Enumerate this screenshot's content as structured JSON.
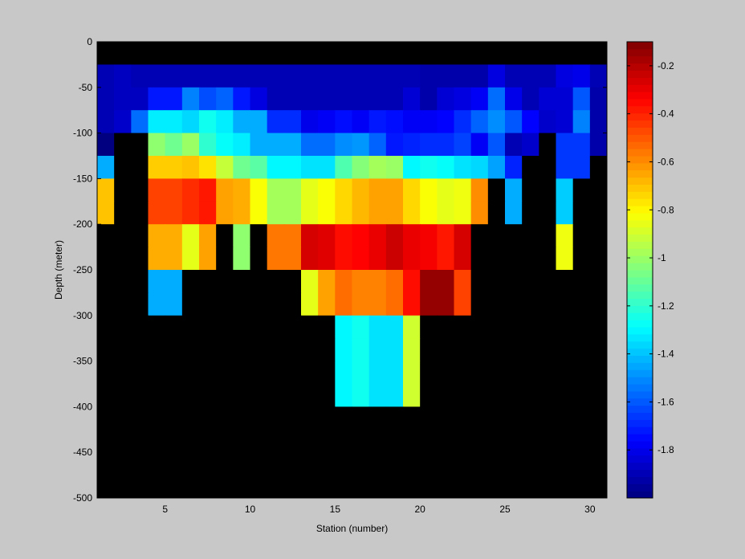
{
  "chart_data": {
    "type": "heatmap",
    "title": "",
    "xlabel": "Station (number)",
    "ylabel": "Depth (meter)",
    "xlim": [
      1,
      31
    ],
    "ylim": [
      -500,
      0
    ],
    "x_ticks": [
      5,
      10,
      15,
      20,
      25,
      30
    ],
    "y_ticks": [
      0,
      -50,
      -100,
      -150,
      -200,
      -250,
      -300,
      -350,
      -400,
      -450,
      -500
    ],
    "grid": false,
    "stations": [
      1,
      2,
      3,
      4,
      5,
      6,
      7,
      8,
      9,
      10,
      11,
      12,
      13,
      14,
      15,
      16,
      17,
      18,
      19,
      20,
      21,
      22,
      23,
      24,
      25,
      26,
      27,
      28,
      29,
      30
    ],
    "depths": [
      0,
      -25,
      -50,
      -75,
      -100,
      -125,
      -150,
      -175,
      -200,
      -225,
      -250,
      -275,
      -300,
      -325,
      -350,
      -375,
      -400,
      -425,
      -450,
      -475
    ],
    "no_data_color": "#000000",
    "colorbar": {
      "colormap": "jet",
      "range": [
        -2.0,
        -0.1
      ],
      "ticks": [
        -0.2,
        -0.4,
        -0.6,
        -0.8,
        -1,
        -1.2,
        -1.4,
        -1.6,
        -1.8
      ]
    },
    "values": [
      [
        null,
        null,
        null,
        null,
        null,
        null,
        null,
        null,
        null,
        null,
        null,
        null,
        null,
        null,
        null,
        null,
        null,
        null,
        null,
        null,
        null,
        null,
        null,
        null,
        null,
        null,
        null,
        null,
        null,
        null
      ],
      [
        -1.9,
        -1.88,
        -1.9,
        -1.9,
        -1.9,
        -1.9,
        -1.9,
        -1.9,
        -1.9,
        -1.9,
        -1.9,
        -1.9,
        -1.9,
        -1.9,
        -1.9,
        -1.9,
        -1.9,
        -1.9,
        -1.9,
        -1.92,
        -1.92,
        -1.92,
        -1.92,
        -1.82,
        -1.9,
        -1.9,
        -1.9,
        -1.82,
        -1.8,
        -1.9
      ],
      [
        -1.9,
        -1.88,
        -1.88,
        -1.72,
        -1.72,
        -1.52,
        -1.62,
        -1.58,
        -1.72,
        -1.82,
        -1.9,
        -1.9,
        -1.9,
        -1.9,
        -1.9,
        -1.9,
        -1.9,
        -1.9,
        -1.84,
        -1.92,
        -1.84,
        -1.82,
        -1.78,
        -1.56,
        -1.8,
        -1.9,
        -1.84,
        -1.84,
        -1.6,
        -1.92
      ],
      [
        -1.9,
        -1.86,
        -1.56,
        -1.32,
        -1.32,
        -1.36,
        -1.26,
        -1.32,
        -1.44,
        -1.44,
        -1.68,
        -1.68,
        -1.8,
        -1.78,
        -1.74,
        -1.78,
        -1.72,
        -1.74,
        -1.78,
        -1.78,
        -1.76,
        -1.68,
        -1.58,
        -1.5,
        -1.6,
        -1.76,
        -1.86,
        -1.84,
        -1.52,
        -1.92
      ],
      [
        -2.0,
        null,
        null,
        -1.02,
        -1.08,
        -1.0,
        -1.2,
        -1.28,
        -1.32,
        -1.44,
        -1.44,
        -1.44,
        -1.56,
        -1.56,
        -1.5,
        -1.48,
        -1.58,
        -1.72,
        -1.7,
        -1.68,
        -1.68,
        -1.64,
        -1.78,
        -1.6,
        -1.9,
        -1.86,
        null,
        -1.66,
        -1.66,
        -1.92
      ],
      [
        -1.44,
        null,
        null,
        -0.72,
        -0.72,
        -0.7,
        -0.76,
        -0.92,
        -1.08,
        -1.12,
        -1.3,
        -1.3,
        -1.34,
        -1.34,
        -1.14,
        -1.04,
        -0.98,
        -1.0,
        -1.3,
        -1.26,
        -1.28,
        -1.34,
        -1.36,
        -1.46,
        -1.7,
        null,
        null,
        -1.66,
        -1.66,
        null
      ],
      [
        -0.7,
        null,
        null,
        -0.46,
        -0.46,
        -0.42,
        -0.38,
        -0.64,
        -0.66,
        -0.82,
        -0.98,
        -0.98,
        -0.86,
        -0.82,
        -0.74,
        -0.68,
        -0.64,
        -0.64,
        -0.74,
        -0.82,
        -0.86,
        -0.84,
        -0.6,
        null,
        -1.44,
        null,
        null,
        -1.38,
        null,
        null
      ],
      [
        -0.7,
        null,
        null,
        -0.46,
        -0.46,
        -0.42,
        -0.38,
        -0.64,
        -0.66,
        -0.82,
        -0.98,
        -0.98,
        -0.86,
        -0.82,
        -0.74,
        -0.68,
        -0.64,
        -0.64,
        -0.74,
        -0.82,
        -0.86,
        -0.84,
        -0.6,
        null,
        -1.44,
        null,
        null,
        -1.38,
        null,
        null
      ],
      [
        null,
        null,
        null,
        -0.66,
        -0.66,
        -0.86,
        -0.64,
        null,
        -1.02,
        null,
        -0.56,
        -0.56,
        -0.26,
        -0.28,
        -0.36,
        -0.34,
        -0.3,
        -0.24,
        -0.3,
        -0.32,
        -0.38,
        -0.26,
        null,
        null,
        null,
        null,
        null,
        -0.84,
        null,
        null
      ],
      [
        null,
        null,
        null,
        -0.66,
        -0.66,
        -0.86,
        -0.64,
        null,
        -1.02,
        null,
        -0.56,
        -0.56,
        -0.26,
        -0.28,
        -0.36,
        -0.34,
        -0.3,
        -0.24,
        -0.3,
        -0.32,
        -0.38,
        -0.26,
        null,
        null,
        null,
        null,
        null,
        -0.84,
        null,
        null
      ],
      [
        null,
        null,
        null,
        -1.44,
        -1.44,
        null,
        null,
        null,
        null,
        null,
        null,
        null,
        -0.86,
        -0.64,
        -0.54,
        -0.58,
        -0.58,
        -0.54,
        -0.36,
        -0.14,
        -0.14,
        -0.46,
        null,
        null,
        null,
        null,
        null,
        null,
        null,
        null
      ],
      [
        null,
        null,
        null,
        -1.44,
        -1.44,
        null,
        null,
        null,
        null,
        null,
        null,
        null,
        -0.86,
        -0.64,
        -0.54,
        -0.58,
        -0.58,
        -0.54,
        -0.36,
        -0.14,
        -0.14,
        -0.46,
        null,
        null,
        null,
        null,
        null,
        null,
        null,
        null
      ],
      [
        null,
        null,
        null,
        null,
        null,
        null,
        null,
        null,
        null,
        null,
        null,
        null,
        null,
        null,
        -1.3,
        -1.26,
        -1.34,
        -1.34,
        -0.9,
        null,
        null,
        null,
        null,
        null,
        null,
        null,
        null,
        null,
        null,
        null
      ],
      [
        null,
        null,
        null,
        null,
        null,
        null,
        null,
        null,
        null,
        null,
        null,
        null,
        null,
        null,
        -1.3,
        -1.26,
        -1.34,
        -1.34,
        -0.9,
        null,
        null,
        null,
        null,
        null,
        null,
        null,
        null,
        null,
        null,
        null
      ],
      [
        null,
        null,
        null,
        null,
        null,
        null,
        null,
        null,
        null,
        null,
        null,
        null,
        null,
        null,
        -1.3,
        -1.26,
        -1.34,
        -1.34,
        -0.9,
        null,
        null,
        null,
        null,
        null,
        null,
        null,
        null,
        null,
        null,
        null
      ],
      [
        null,
        null,
        null,
        null,
        null,
        null,
        null,
        null,
        null,
        null,
        null,
        null,
        null,
        null,
        -1.3,
        -1.26,
        -1.34,
        -1.34,
        -0.9,
        null,
        null,
        null,
        null,
        null,
        null,
        null,
        null,
        null,
        null,
        null
      ],
      [
        null,
        null,
        null,
        null,
        null,
        null,
        null,
        null,
        null,
        null,
        null,
        null,
        null,
        null,
        null,
        null,
        null,
        null,
        null,
        null,
        null,
        null,
        null,
        null,
        null,
        null,
        null,
        null,
        null,
        null
      ],
      [
        null,
        null,
        null,
        null,
        null,
        null,
        null,
        null,
        null,
        null,
        null,
        null,
        null,
        null,
        null,
        null,
        null,
        null,
        null,
        null,
        null,
        null,
        null,
        null,
        null,
        null,
        null,
        null,
        null,
        null
      ],
      [
        null,
        null,
        null,
        null,
        null,
        null,
        null,
        null,
        null,
        null,
        null,
        null,
        null,
        null,
        null,
        null,
        null,
        null,
        null,
        null,
        null,
        null,
        null,
        null,
        null,
        null,
        null,
        null,
        null,
        null
      ],
      [
        null,
        null,
        null,
        null,
        null,
        null,
        null,
        null,
        null,
        null,
        null,
        null,
        null,
        null,
        null,
        null,
        null,
        null,
        null,
        null,
        null,
        null,
        null,
        null,
        null,
        null,
        null,
        null,
        null,
        null
      ]
    ]
  }
}
